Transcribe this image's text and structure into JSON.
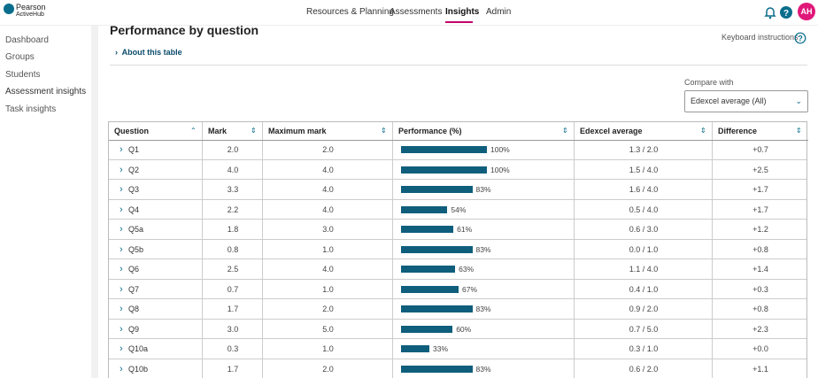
{
  "nav": {
    "brand": "Pearson",
    "product": "ActiveHub",
    "items": [
      "Resources & Planning",
      "Assessments",
      "Insights",
      "Admin"
    ],
    "avatar": "AH"
  },
  "sidebar": [
    "Dashboard",
    "Groups",
    "Students",
    "Assessment insights",
    "Task insights"
  ],
  "page": {
    "title": "Performance by question",
    "about": "About this table",
    "keyboard": "Keyboard instructions",
    "compare_label": "Compare with",
    "compare_value": "Edexcel average (All)"
  },
  "table": {
    "headers": [
      "Question",
      "Mark",
      "Maximum mark",
      "Performance (%)",
      "Edexcel average",
      "Difference"
    ],
    "rows": [
      {
        "question": "Q1",
        "mark": "2.0",
        "max": "2.0",
        "performance": 100,
        "performance_label": "100%",
        "average": "1.3 / 2.0",
        "difference": "+0.7"
      },
      {
        "question": "Q2",
        "mark": "4.0",
        "max": "4.0",
        "performance": 100,
        "performance_label": "100%",
        "average": "1.5 / 4.0",
        "difference": "+2.5"
      },
      {
        "question": "Q3",
        "mark": "3.3",
        "max": "4.0",
        "performance": 83,
        "performance_label": "83%",
        "average": "1.6 / 4.0",
        "difference": "+1.7"
      },
      {
        "question": "Q4",
        "mark": "2.2",
        "max": "4.0",
        "performance": 54,
        "performance_label": "54%",
        "average": "0.5 / 4.0",
        "difference": "+1.7"
      },
      {
        "question": "Q5a",
        "mark": "1.8",
        "max": "3.0",
        "performance": 61,
        "performance_label": "61%",
        "average": "0.6 / 3.0",
        "difference": "+1.2"
      },
      {
        "question": "Q5b",
        "mark": "0.8",
        "max": "1.0",
        "performance": 83,
        "performance_label": "83%",
        "average": "0.0 / 1.0",
        "difference": "+0.8"
      },
      {
        "question": "Q6",
        "mark": "2.5",
        "max": "4.0",
        "performance": 63,
        "performance_label": "63%",
        "average": "1.1 / 4.0",
        "difference": "+1.4"
      },
      {
        "question": "Q7",
        "mark": "0.7",
        "max": "1.0",
        "performance": 67,
        "performance_label": "67%",
        "average": "0.4 / 1.0",
        "difference": "+0.3"
      },
      {
        "question": "Q8",
        "mark": "1.7",
        "max": "2.0",
        "performance": 83,
        "performance_label": "83%",
        "average": "0.9 / 2.0",
        "difference": "+0.8"
      },
      {
        "question": "Q9",
        "mark": "3.0",
        "max": "5.0",
        "performance": 60,
        "performance_label": "60%",
        "average": "0.7 / 5.0",
        "difference": "+2.3"
      },
      {
        "question": "Q10a",
        "mark": "0.3",
        "max": "1.0",
        "performance": 33,
        "performance_label": "33%",
        "average": "0.3 / 1.0",
        "difference": "+0.0"
      },
      {
        "question": "Q10b",
        "mark": "1.7",
        "max": "2.0",
        "performance": 83,
        "performance_label": "83%",
        "average": "0.6 / 2.0",
        "difference": "+1.1"
      }
    ]
  }
}
